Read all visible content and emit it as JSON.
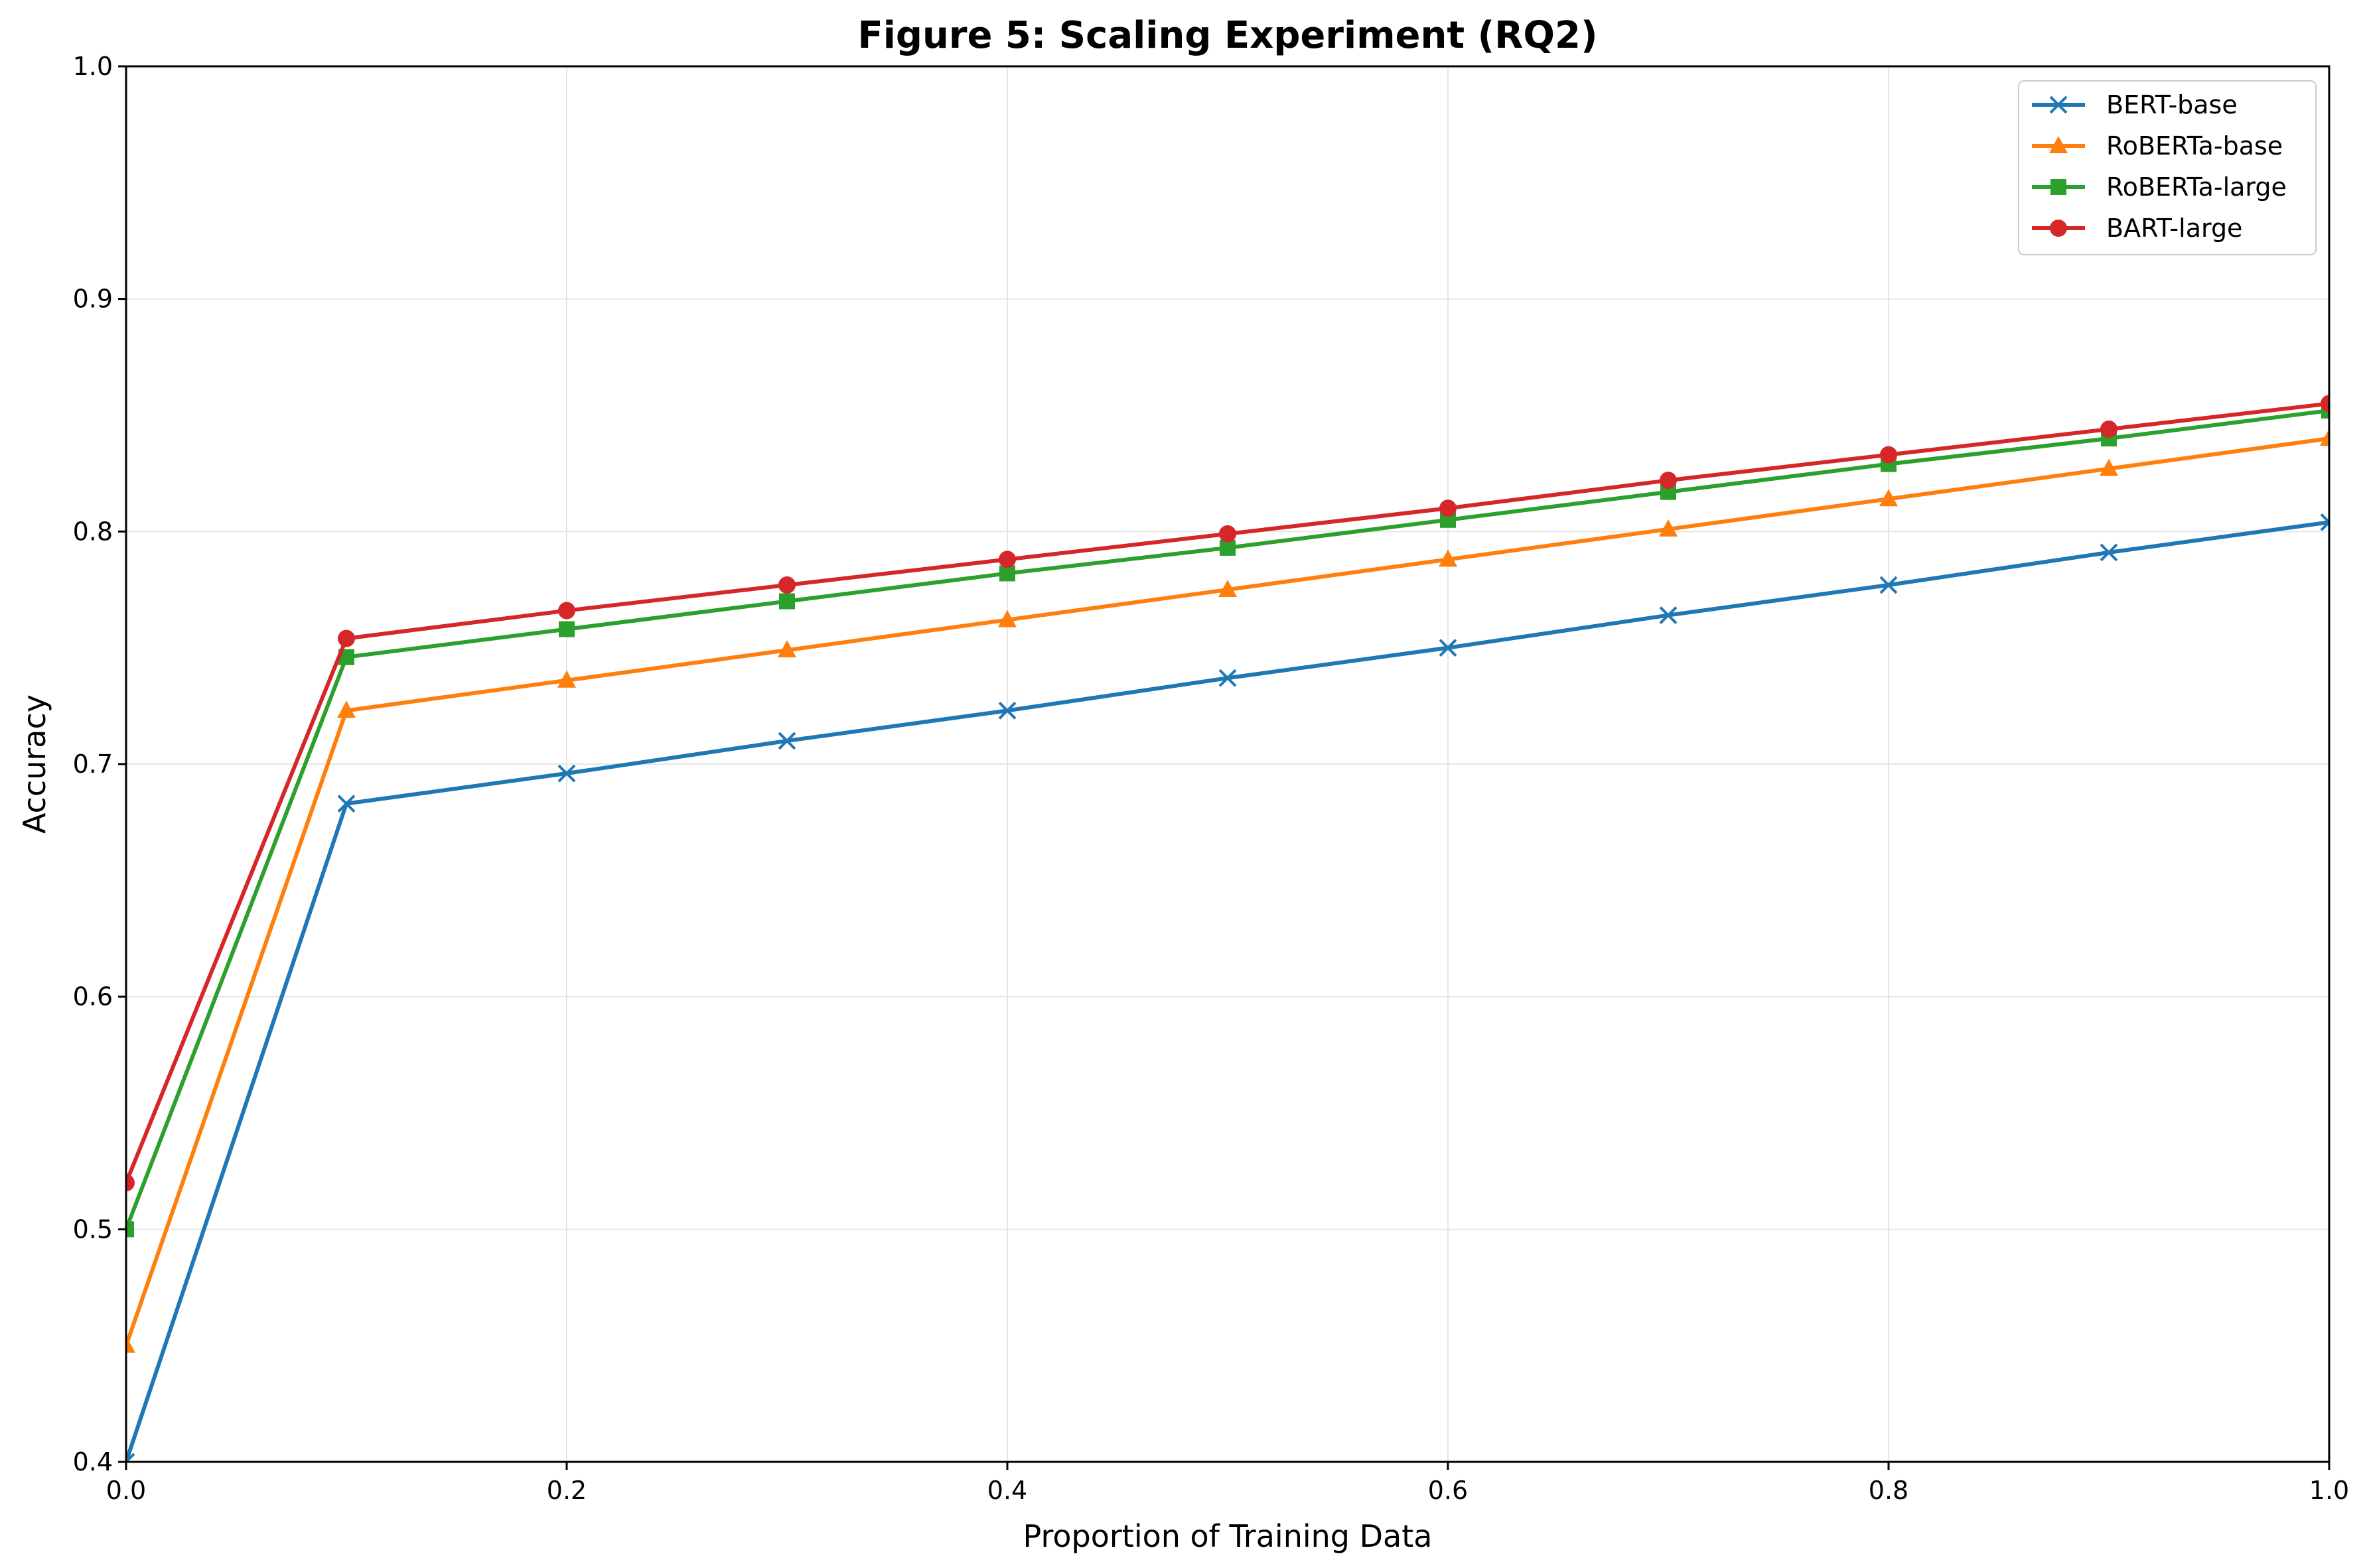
{
  "chart_data": {
    "type": "line",
    "title": "Figure 5: Scaling Experiment (RQ2)",
    "xlabel": "Proportion of Training Data",
    "ylabel": "Accuracy",
    "xlim": [
      0.0,
      1.0
    ],
    "ylim": [
      0.4,
      1.0
    ],
    "xticks": [
      "0.0",
      "0.2",
      "0.4",
      "0.6",
      "0.8",
      "1.0"
    ],
    "yticks": [
      "0.4",
      "0.5",
      "0.6",
      "0.7",
      "0.8",
      "0.9",
      "1.0"
    ],
    "grid": true,
    "legend_position": "top-right",
    "x": [
      0.0,
      0.1,
      0.2,
      0.3,
      0.4,
      0.5,
      0.6,
      0.7,
      0.8,
      0.9,
      1.0
    ],
    "series": [
      {
        "name": "BERT-base",
        "color": "#1f77b4",
        "marker": "x",
        "values": [
          0.4,
          0.683,
          0.696,
          0.71,
          0.723,
          0.737,
          0.75,
          0.764,
          0.777,
          0.791,
          0.804
        ]
      },
      {
        "name": "RoBERTa-base",
        "color": "#ff7f0e",
        "marker": "triangle",
        "values": [
          0.45,
          0.723,
          0.736,
          0.749,
          0.762,
          0.775,
          0.788,
          0.801,
          0.814,
          0.827,
          0.84
        ]
      },
      {
        "name": "RoBERTa-large",
        "color": "#2ca02c",
        "marker": "square",
        "values": [
          0.5,
          0.746,
          0.758,
          0.77,
          0.782,
          0.793,
          0.805,
          0.817,
          0.829,
          0.84,
          0.852
        ]
      },
      {
        "name": "BART-large",
        "color": "#d62728",
        "marker": "circle",
        "values": [
          0.52,
          0.754,
          0.766,
          0.777,
          0.788,
          0.799,
          0.81,
          0.822,
          0.833,
          0.844,
          0.855
        ]
      }
    ]
  }
}
